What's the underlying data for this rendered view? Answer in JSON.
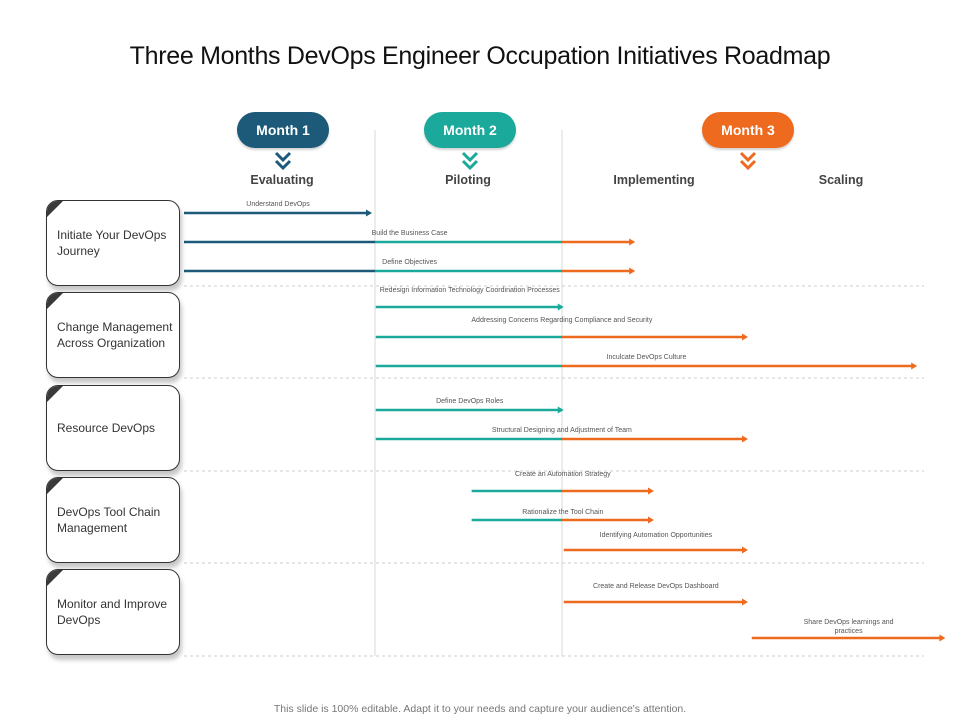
{
  "title": "Three Months DevOps Engineer Occupation  Initiatives Roadmap",
  "footer": "This slide is 100% editable. Adapt it to your needs and capture your audience's attention.",
  "colors": {
    "month1": "#1d5a7a",
    "month2": "#1aa99a",
    "month3": "#ee6a1f",
    "teal_line": "#1aa99a",
    "navy_line": "#1d5a7a",
    "orange_line": "#ee6a1f"
  },
  "months": [
    {
      "label": "Month 1",
      "color": "#1d5a7a",
      "icon": "chevron-double-down-icon"
    },
    {
      "label": "Month 2",
      "color": "#1aa99a",
      "icon": "chevron-double-down-icon"
    },
    {
      "label": "Month 3",
      "color": "#ee6a1f",
      "icon": "chevron-double-down-icon"
    }
  ],
  "phases": [
    "Evaluating",
    "Piloting",
    "Implementing",
    "Scaling"
  ],
  "categories": [
    "Initiate Your DevOps  Journey",
    "Change Management Across Organization",
    "Resource DevOps",
    "DevOps  Tool Chain Management",
    "Monitor and Improve  DevOps"
  ],
  "tasks": [
    {
      "label": "Understand  DevOps",
      "category": 0,
      "start": 0,
      "end": 1,
      "colors": [
        "navy"
      ]
    },
    {
      "label": "Build the Business  Case",
      "category": 0,
      "start": 0,
      "end": 2.4,
      "colors": [
        "navy",
        "teal",
        "orange"
      ]
    },
    {
      "label": "Define Objectives",
      "category": 0,
      "start": 0,
      "end": 2.4,
      "colors": [
        "navy",
        "teal",
        "orange"
      ]
    },
    {
      "label": "Redesign  Information  Technology  Coordination  Processes",
      "category": 1,
      "start": 1.02,
      "end": 2.02,
      "colors": [
        "teal"
      ]
    },
    {
      "label": "Addressing  Concerns  Regarding  Compliance and  Security",
      "category": 1,
      "start": 1.02,
      "end": 3,
      "colors": [
        "teal",
        "orange"
      ]
    },
    {
      "label": "Inculcate DevOps Culture",
      "category": 1,
      "start": 1.02,
      "end": 3.9,
      "colors": [
        "teal",
        "orange"
      ]
    },
    {
      "label": "Define DevOps  Roles",
      "category": 2,
      "start": 1.02,
      "end": 2.02,
      "colors": [
        "teal"
      ]
    },
    {
      "label": "Structural Designing  and Adjustment  of Team",
      "category": 2,
      "start": 1.02,
      "end": 3,
      "colors": [
        "teal",
        "orange"
      ]
    },
    {
      "label": "Create an Automation  Strategy",
      "category": 3,
      "start": 1.53,
      "end": 2.5,
      "colors": [
        "teal",
        "orange"
      ]
    },
    {
      "label": "Rationalize  the Tool Chain",
      "category": 3,
      "start": 1.53,
      "end": 2.5,
      "colors": [
        "teal",
        "orange"
      ]
    },
    {
      "label": "Identifying  Automation  Opportunities",
      "category": 3,
      "start": 2.02,
      "end": 3,
      "colors": [
        "orange"
      ]
    },
    {
      "label": "Create and  Release  DevOps  Dashboard",
      "category": 4,
      "start": 2.02,
      "end": 3,
      "colors": [
        "orange"
      ]
    },
    {
      "label": "Share DevOps  learnings  and practices",
      "category": 4,
      "start": 3.02,
      "end": 4.05,
      "colors": [
        "orange"
      ]
    }
  ]
}
